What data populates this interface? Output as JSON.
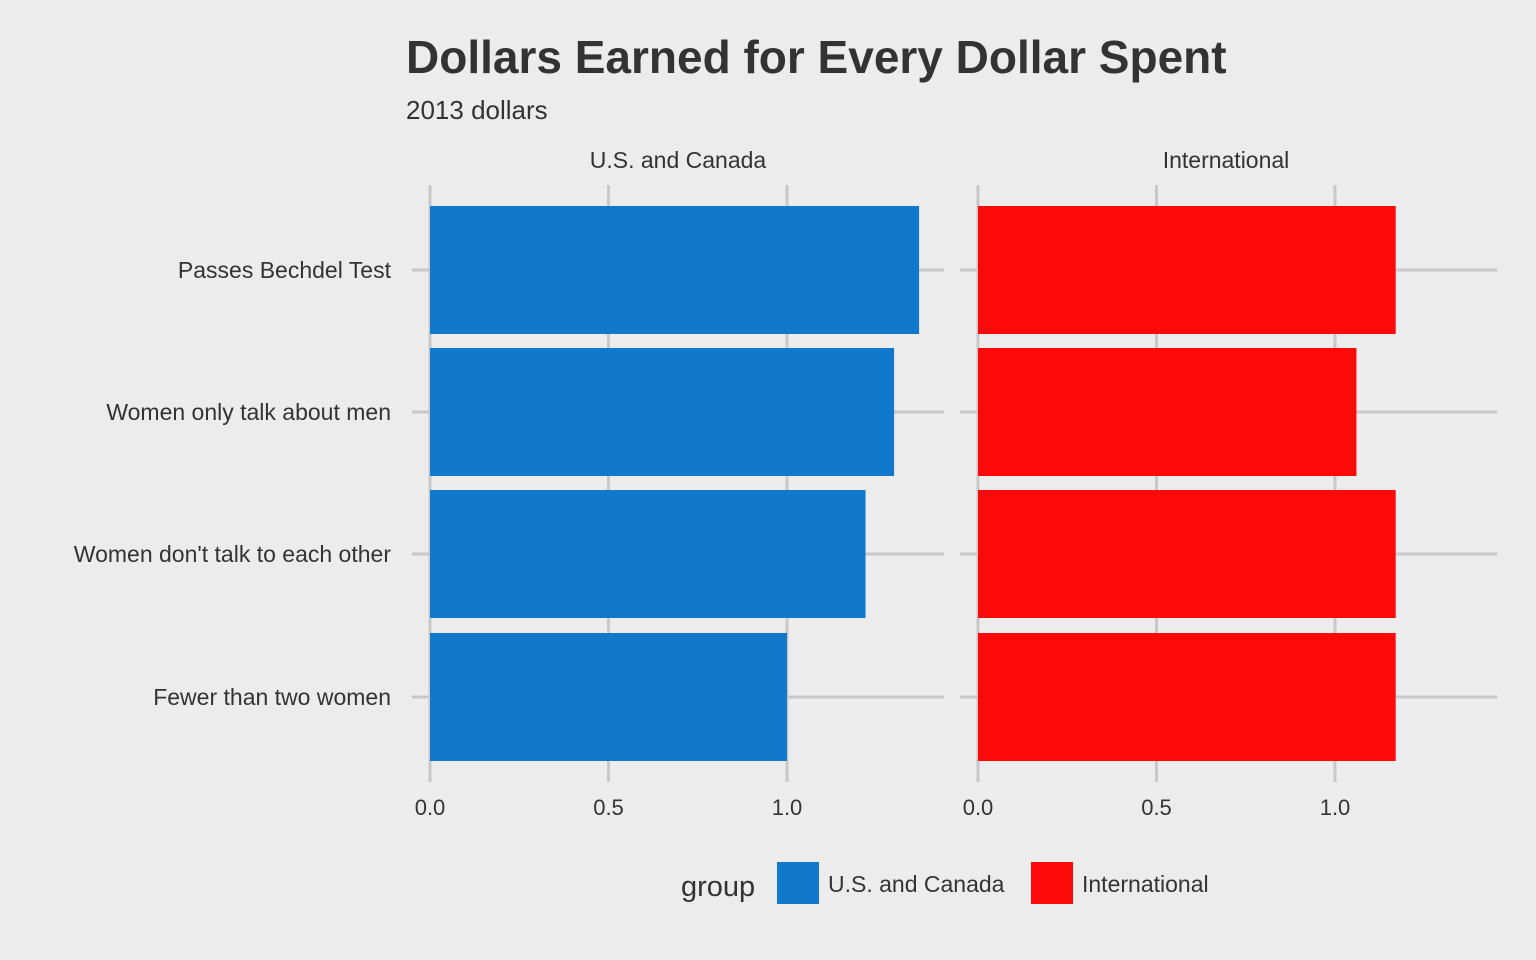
{
  "chart_data": {
    "type": "bar",
    "orientation": "horizontal",
    "title": "Dollars Earned for Every Dollar Spent",
    "subtitle": "2013 dollars",
    "categories": [
      "Passes Bechdel Test",
      "Women only talk about men",
      "Women don't talk to each other",
      "Fewer than two women"
    ],
    "panels": [
      {
        "name": "U.S. and Canada",
        "color": "#1079cc",
        "values": [
          1.37,
          1.3,
          1.22,
          1.0
        ]
      },
      {
        "name": "International",
        "color": "#fc0a0a",
        "values": [
          1.17,
          1.06,
          1.17,
          1.17
        ]
      }
    ],
    "xlim": [
      0,
      1.4
    ],
    "xticks": [
      0.0,
      0.5,
      1.0
    ],
    "xtick_labels": [
      "0.0",
      "0.5",
      "1.0"
    ],
    "grid": true,
    "legend": {
      "title": "group",
      "position": "bottom",
      "entries": [
        {
          "label": "U.S. and Canada",
          "color": "#1079cc"
        },
        {
          "label": "International",
          "color": "#fc0a0a"
        }
      ]
    }
  }
}
